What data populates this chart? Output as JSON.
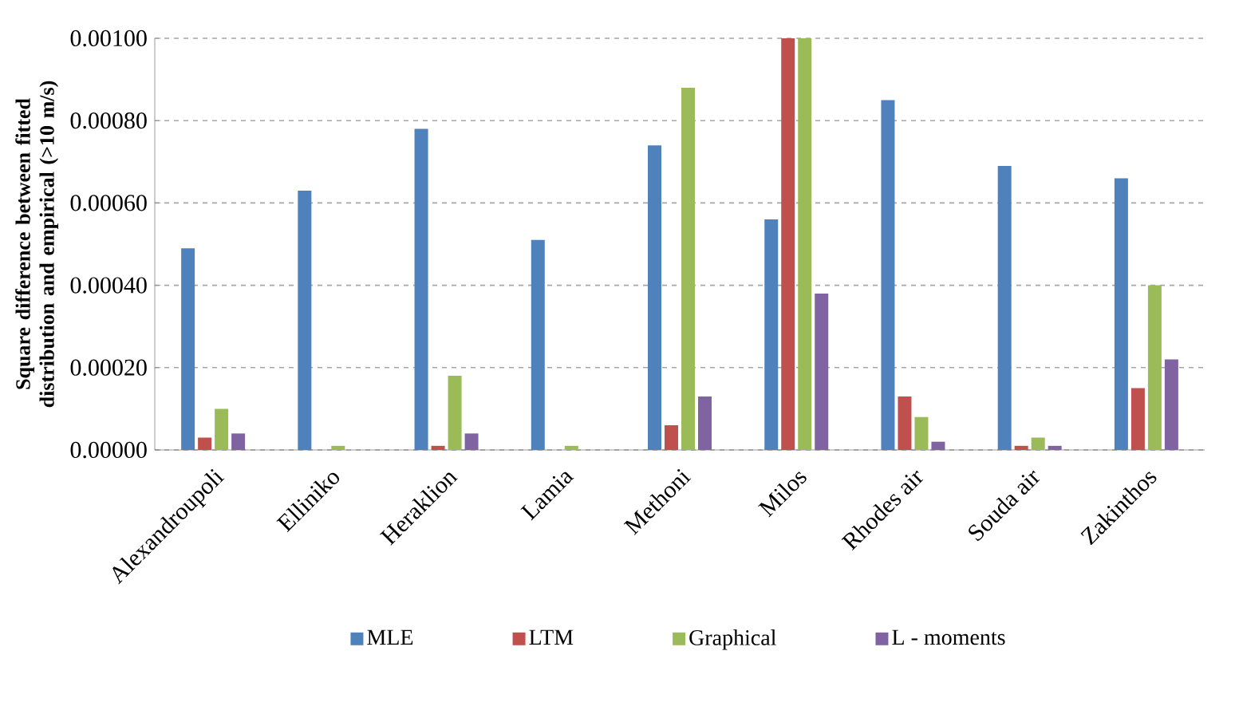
{
  "chart_data": {
    "type": "bar",
    "ylabel": "Square difference between fitted distribution and empirical  (>10 m/s)",
    "categories": [
      "Alexandroupoli",
      "Elliniko",
      "Heraklion",
      "Lamia",
      "Methoni",
      "Milos",
      "Rhodes air",
      "Souda air",
      "Zakinthos"
    ],
    "series": [
      {
        "name": "MLE",
        "color": "#4f81bd",
        "values": [
          0.00049,
          0.00063,
          0.00078,
          0.00051,
          0.00074,
          0.00056,
          0.00085,
          0.00069,
          0.00066
        ]
      },
      {
        "name": "LTM",
        "color": "#c0504d",
        "values": [
          3e-05,
          0,
          1e-05,
          0,
          6e-05,
          0.001,
          0.00013,
          1e-05,
          0.00015
        ]
      },
      {
        "name": "Graphical",
        "color": "#9bbb59",
        "values": [
          0.0001,
          1e-05,
          0.00018,
          1e-05,
          0.00088,
          0.001,
          8e-05,
          3e-05,
          0.0004
        ]
      },
      {
        "name": "L - moments",
        "color": "#8064a2",
        "values": [
          4e-05,
          0,
          4e-05,
          0,
          0.00013,
          0.00038,
          2e-05,
          1e-05,
          0.00022
        ]
      }
    ],
    "ylim": [
      0,
      0.001
    ],
    "yticks": [
      {
        "value": 0,
        "label": "0.00000"
      },
      {
        "value": 0.0002,
        "label": "0.00020"
      },
      {
        "value": 0.0004,
        "label": "0.00040"
      },
      {
        "value": 0.0006,
        "label": "0.00060"
      },
      {
        "value": 0.0008,
        "label": "0.00080"
      },
      {
        "value": 0.001,
        "label": "0.00100"
      }
    ],
    "grid": "y",
    "legend": "bottom"
  }
}
